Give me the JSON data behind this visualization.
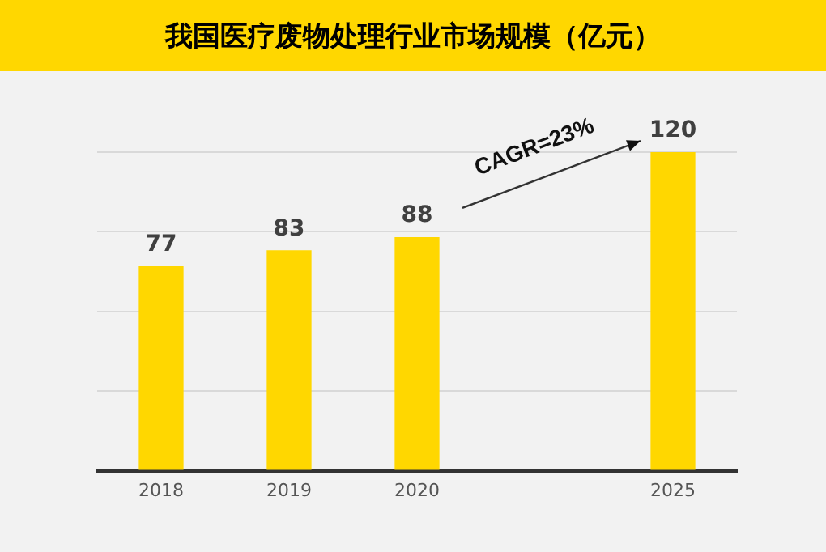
{
  "chart_data": {
    "type": "bar",
    "title": "我国医疗废物处理行业市场规模（亿元）",
    "categories": [
      "2018",
      "2019",
      "2020",
      null,
      "2025"
    ],
    "series": [
      {
        "color": "#ffd700",
        "values": [
          77,
          83,
          88,
          null,
          120
        ]
      }
    ],
    "ylim": [
      0,
      120
    ],
    "yticks": [
      {
        "value": 0,
        "label": null
      },
      {
        "value": 30,
        "label": null
      },
      {
        "value": 60,
        "label": null
      },
      {
        "value": 90,
        "label": null
      },
      {
        "value": 120,
        "label": null
      }
    ],
    "tick_labels": "x",
    "grid": "y",
    "legend": false,
    "data_labels": true,
    "annotations": [
      "CAGR=23%"
    ]
  }
}
